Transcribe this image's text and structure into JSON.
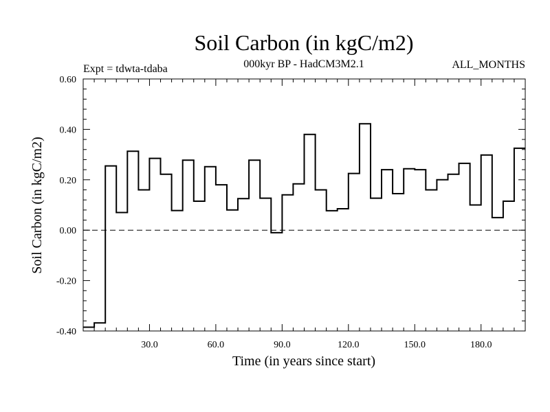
{
  "chart_data": {
    "type": "line",
    "style": "step",
    "title": "Soil Carbon (in kgC/m2)",
    "subtitle": "000kyr BP - HadCM3M2.1",
    "left_note": "Expt = tdwta-tdaba",
    "right_note": "ALL_MONTHS",
    "xlabel": "Time (in years since start)",
    "ylabel": "Soil Carbon (in kgC/m2)",
    "xlim": [
      0,
      200
    ],
    "ylim": [
      -0.4,
      0.6
    ],
    "x_ticks": [
      30,
      60,
      90,
      120,
      150,
      180
    ],
    "x_tick_labels": [
      "30.0",
      "60.0",
      "90.0",
      "120.0",
      "150.0",
      "180.0"
    ],
    "y_ticks": [
      -0.4,
      -0.2,
      0.0,
      0.2,
      0.4,
      0.6
    ],
    "y_tick_labels": [
      "-0.40",
      "-0.20",
      "0.00",
      "0.20",
      "0.40",
      "0.60"
    ],
    "zero_line": "dashed",
    "series": [
      {
        "name": "Soil Carbon",
        "bin_width": 5,
        "x_start": 0,
        "values": [
          -0.385,
          -0.368,
          0.255,
          0.07,
          0.313,
          0.16,
          0.285,
          0.222,
          0.078,
          0.278,
          0.115,
          0.252,
          0.18,
          0.08,
          0.125,
          0.278,
          0.127,
          -0.01,
          0.14,
          0.184,
          0.38,
          0.16,
          0.077,
          0.085,
          0.225,
          0.422,
          0.127,
          0.24,
          0.145,
          0.244,
          0.24,
          0.16,
          0.2,
          0.222,
          0.265,
          0.1,
          0.298,
          0.05,
          0.115,
          0.325
        ]
      }
    ]
  }
}
